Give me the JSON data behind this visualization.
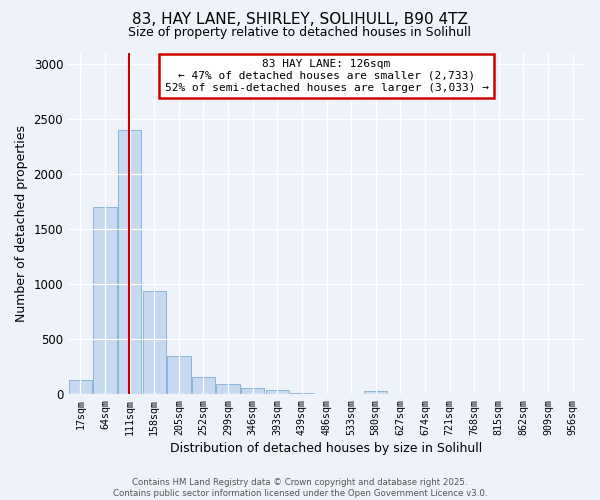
{
  "title_line1": "83, HAY LANE, SHIRLEY, SOLIHULL, B90 4TZ",
  "title_line2": "Size of property relative to detached houses in Solihull",
  "xlabel": "Distribution of detached houses by size in Solihull",
  "ylabel": "Number of detached properties",
  "annotation_title": "83 HAY LANE: 126sqm",
  "annotation_line2": "← 47% of detached houses are smaller (2,733)",
  "annotation_line3": "52% of semi-detached houses are larger (3,033) →",
  "footer_line1": "Contains HM Land Registry data © Crown copyright and database right 2025.",
  "footer_line2": "Contains public sector information licensed under the Open Government Licence v3.0.",
  "bar_color": "#c7d9f0",
  "bar_edge_color": "#7aaed4",
  "redline_color": "#cc0000",
  "redline_bin_index": 2,
  "categories": [
    "17sqm",
    "64sqm",
    "111sqm",
    "158sqm",
    "205sqm",
    "252sqm",
    "299sqm",
    "346sqm",
    "393sqm",
    "439sqm",
    "486sqm",
    "533sqm",
    "580sqm",
    "627sqm",
    "674sqm",
    "721sqm",
    "768sqm",
    "815sqm",
    "862sqm",
    "909sqm",
    "956sqm"
  ],
  "values": [
    130,
    1700,
    2400,
    940,
    345,
    155,
    90,
    55,
    35,
    8,
    5,
    3,
    25,
    3,
    0,
    0,
    0,
    0,
    0,
    0,
    0
  ],
  "ylim": [
    0,
    3100
  ],
  "yticks": [
    0,
    500,
    1000,
    1500,
    2000,
    2500,
    3000
  ],
  "background_color": "#eef2f9",
  "annotation_box_color": "#ffffff",
  "annotation_box_edge": "#cc0000",
  "grid_color": "#ffffff"
}
